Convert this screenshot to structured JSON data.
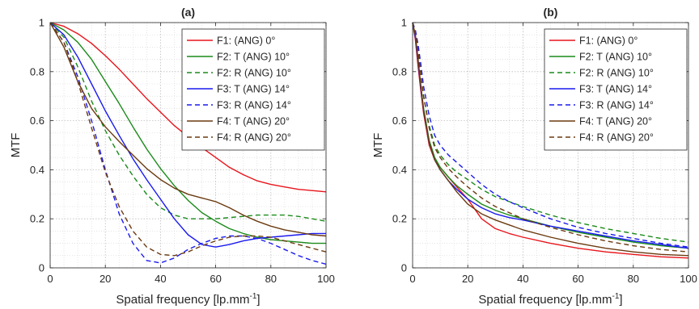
{
  "chart_data": [
    {
      "type": "line",
      "title": "(a)",
      "xlabel": "Spatial frequency [lp.mm",
      "xlabel_sup": "-1",
      "xlabel_suffix": "]",
      "ylabel": "MTF",
      "xlim": [
        0,
        100
      ],
      "ylim": [
        0,
        1
      ],
      "x_ticks": [
        0,
        20,
        40,
        60,
        80,
        100
      ],
      "y_ticks": [
        0,
        0.2,
        0.4,
        0.6,
        0.8,
        1
      ],
      "y_tick_labels": [
        "0",
        "0.2",
        "0.4",
        "0.6",
        "0.8",
        "1"
      ],
      "grid": "major and minor, dotted",
      "legend_position": "top-right",
      "series": [
        {
          "name": "F1: (ANG) 0°",
          "color": "#e8141b",
          "dash": "solid",
          "x": [
            0,
            5,
            10,
            15,
            20,
            25,
            30,
            35,
            40,
            45,
            50,
            55,
            60,
            65,
            70,
            75,
            80,
            85,
            90,
            95,
            100
          ],
          "y": [
            1,
            0.985,
            0.955,
            0.915,
            0.865,
            0.81,
            0.75,
            0.69,
            0.635,
            0.58,
            0.535,
            0.49,
            0.45,
            0.41,
            0.38,
            0.355,
            0.34,
            0.33,
            0.32,
            0.315,
            0.31
          ]
        },
        {
          "name": "F2: T (ANG) 10°",
          "color": "#1a8a1a",
          "dash": "solid",
          "x": [
            0,
            5,
            10,
            15,
            20,
            25,
            30,
            35,
            40,
            45,
            50,
            55,
            60,
            65,
            70,
            75,
            80,
            85,
            90,
            95,
            100
          ],
          "y": [
            1,
            0.97,
            0.92,
            0.85,
            0.76,
            0.67,
            0.575,
            0.485,
            0.405,
            0.335,
            0.275,
            0.225,
            0.19,
            0.16,
            0.14,
            0.125,
            0.115,
            0.11,
            0.105,
            0.1,
            0.1
          ]
        },
        {
          "name": "F2: R (ANG) 10°",
          "color": "#1a8a1a",
          "dash": "dashed",
          "x": [
            0,
            5,
            10,
            15,
            20,
            25,
            30,
            35,
            40,
            45,
            50,
            55,
            60,
            65,
            70,
            75,
            80,
            85,
            90,
            95,
            100
          ],
          "y": [
            1,
            0.94,
            0.82,
            0.68,
            0.56,
            0.46,
            0.375,
            0.3,
            0.245,
            0.215,
            0.2,
            0.2,
            0.2,
            0.205,
            0.21,
            0.215,
            0.215,
            0.215,
            0.21,
            0.2,
            0.19
          ]
        },
        {
          "name": "F3: T (ANG) 14°",
          "color": "#1a1af0",
          "dash": "solid",
          "x": [
            0,
            5,
            10,
            15,
            20,
            25,
            30,
            35,
            40,
            45,
            50,
            55,
            60,
            65,
            70,
            75,
            80,
            85,
            90,
            95,
            100
          ],
          "y": [
            1,
            0.95,
            0.86,
            0.75,
            0.64,
            0.54,
            0.445,
            0.36,
            0.28,
            0.2,
            0.135,
            0.095,
            0.085,
            0.095,
            0.11,
            0.12,
            0.125,
            0.13,
            0.135,
            0.14,
            0.14
          ]
        },
        {
          "name": "F3: R (ANG) 14°",
          "color": "#1a1af0",
          "dash": "dashed",
          "x": [
            0,
            5,
            10,
            15,
            20,
            25,
            30,
            35,
            40,
            45,
            50,
            55,
            60,
            65,
            70,
            75,
            80,
            85,
            90,
            95,
            100
          ],
          "y": [
            1,
            0.92,
            0.78,
            0.6,
            0.4,
            0.22,
            0.1,
            0.03,
            0.02,
            0.04,
            0.075,
            0.1,
            0.12,
            0.13,
            0.13,
            0.12,
            0.1,
            0.075,
            0.05,
            0.03,
            0.015
          ]
        },
        {
          "name": "F4: T (ANG) 20°",
          "color": "#6b3a10",
          "dash": "solid",
          "x": [
            0,
            5,
            10,
            15,
            20,
            25,
            30,
            35,
            40,
            45,
            50,
            55,
            60,
            65,
            70,
            75,
            80,
            85,
            90,
            95,
            100
          ],
          "y": [
            1,
            0.9,
            0.76,
            0.65,
            0.575,
            0.515,
            0.46,
            0.405,
            0.36,
            0.325,
            0.3,
            0.285,
            0.27,
            0.245,
            0.215,
            0.19,
            0.17,
            0.155,
            0.145,
            0.135,
            0.13
          ]
        },
        {
          "name": "F4: R (ANG) 20°",
          "color": "#6b3a10",
          "dash": "dashed",
          "x": [
            0,
            5,
            10,
            15,
            20,
            25,
            30,
            35,
            40,
            45,
            50,
            55,
            60,
            65,
            70,
            75,
            80,
            85,
            90,
            95,
            100
          ],
          "y": [
            1,
            0.92,
            0.76,
            0.57,
            0.39,
            0.25,
            0.15,
            0.085,
            0.055,
            0.05,
            0.065,
            0.09,
            0.11,
            0.125,
            0.13,
            0.13,
            0.125,
            0.11,
            0.095,
            0.08,
            0.065
          ]
        }
      ]
    },
    {
      "type": "line",
      "title": "(b)",
      "xlabel": "Spatial frequency [lp.mm",
      "xlabel_sup": "-1",
      "xlabel_suffix": "]",
      "ylabel": "MTF",
      "xlim": [
        0,
        100
      ],
      "ylim": [
        0,
        1
      ],
      "x_ticks": [
        0,
        20,
        40,
        60,
        80,
        100
      ],
      "y_ticks": [
        0,
        0.2,
        0.4,
        0.6,
        0.8,
        1
      ],
      "y_tick_labels": [
        "0",
        "0.2",
        "0.4",
        "0.6",
        "0.8",
        "1"
      ],
      "grid": "major and minor, dotted",
      "legend_position": "top-right",
      "series": [
        {
          "name": "F1: (ANG) 0°",
          "color": "#e8141b",
          "dash": "solid",
          "x": [
            0,
            1,
            2,
            3,
            4,
            6,
            8,
            10,
            13,
            16,
            20,
            25,
            30,
            35,
            40,
            50,
            60,
            70,
            80,
            90,
            100
          ],
          "y": [
            1,
            0.93,
            0.82,
            0.72,
            0.63,
            0.5,
            0.44,
            0.41,
            0.37,
            0.33,
            0.28,
            0.2,
            0.16,
            0.14,
            0.125,
            0.1,
            0.08,
            0.065,
            0.055,
            0.045,
            0.04
          ]
        },
        {
          "name": "F2: T (ANG) 10°",
          "color": "#1a8a1a",
          "dash": "solid",
          "x": [
            0,
            1,
            2,
            3,
            4,
            6,
            8,
            10,
            13,
            16,
            20,
            25,
            30,
            35,
            40,
            50,
            60,
            70,
            80,
            90,
            100
          ],
          "y": [
            1,
            0.94,
            0.84,
            0.74,
            0.65,
            0.52,
            0.45,
            0.41,
            0.37,
            0.335,
            0.3,
            0.26,
            0.235,
            0.215,
            0.2,
            0.17,
            0.145,
            0.125,
            0.105,
            0.09,
            0.08
          ]
        },
        {
          "name": "F2: R (ANG) 10°",
          "color": "#1a8a1a",
          "dash": "dashed",
          "x": [
            0,
            1,
            2,
            3,
            4,
            6,
            8,
            10,
            13,
            16,
            20,
            25,
            30,
            35,
            40,
            50,
            60,
            70,
            80,
            90,
            100
          ],
          "y": [
            1,
            0.96,
            0.88,
            0.79,
            0.7,
            0.58,
            0.5,
            0.46,
            0.42,
            0.39,
            0.36,
            0.32,
            0.29,
            0.27,
            0.25,
            0.215,
            0.185,
            0.16,
            0.14,
            0.12,
            0.105
          ]
        },
        {
          "name": "F3: T (ANG) 14°",
          "color": "#1a1af0",
          "dash": "solid",
          "x": [
            0,
            1,
            2,
            3,
            4,
            6,
            8,
            10,
            13,
            16,
            20,
            25,
            30,
            35,
            40,
            50,
            60,
            70,
            80,
            90,
            100
          ],
          "y": [
            1,
            0.94,
            0.84,
            0.73,
            0.64,
            0.51,
            0.44,
            0.4,
            0.355,
            0.32,
            0.28,
            0.245,
            0.22,
            0.205,
            0.195,
            0.17,
            0.15,
            0.13,
            0.11,
            0.095,
            0.08
          ]
        },
        {
          "name": "F3: R (ANG) 14°",
          "color": "#1a1af0",
          "dash": "dashed",
          "x": [
            0,
            1,
            2,
            3,
            4,
            6,
            8,
            10,
            13,
            16,
            20,
            25,
            30,
            35,
            40,
            50,
            60,
            70,
            80,
            90,
            100
          ],
          "y": [
            1,
            0.97,
            0.91,
            0.83,
            0.74,
            0.62,
            0.54,
            0.5,
            0.46,
            0.43,
            0.39,
            0.34,
            0.3,
            0.27,
            0.245,
            0.2,
            0.165,
            0.14,
            0.12,
            0.1,
            0.085
          ]
        },
        {
          "name": "F4: T (ANG) 20°",
          "color": "#6b3a10",
          "dash": "solid",
          "x": [
            0,
            1,
            2,
            3,
            4,
            6,
            8,
            10,
            13,
            16,
            20,
            25,
            30,
            35,
            40,
            50,
            60,
            70,
            80,
            90,
            100
          ],
          "y": [
            1,
            0.95,
            0.85,
            0.74,
            0.64,
            0.51,
            0.44,
            0.4,
            0.355,
            0.31,
            0.26,
            0.22,
            0.195,
            0.175,
            0.155,
            0.125,
            0.1,
            0.08,
            0.065,
            0.055,
            0.05
          ]
        },
        {
          "name": "F4: R (ANG) 20°",
          "color": "#6b3a10",
          "dash": "dashed",
          "x": [
            0,
            1,
            2,
            3,
            4,
            6,
            8,
            10,
            13,
            16,
            20,
            25,
            30,
            35,
            40,
            50,
            60,
            70,
            80,
            90,
            100
          ],
          "y": [
            1,
            0.96,
            0.88,
            0.79,
            0.7,
            0.57,
            0.49,
            0.45,
            0.405,
            0.37,
            0.33,
            0.285,
            0.25,
            0.225,
            0.2,
            0.165,
            0.135,
            0.11,
            0.09,
            0.075,
            0.065
          ]
        }
      ]
    }
  ]
}
